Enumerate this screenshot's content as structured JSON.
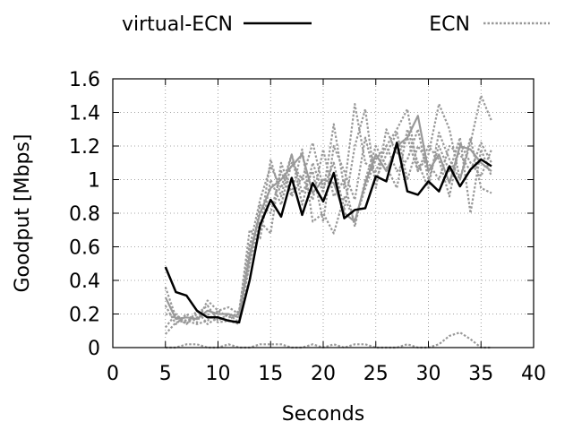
{
  "chart_data": {
    "type": "line",
    "title": "",
    "xlabel": "Seconds",
    "ylabel": "Goodput [Mbps]",
    "xlim": [
      0,
      40
    ],
    "ylim": [
      0,
      1.6
    ],
    "xticks": [
      0,
      5,
      10,
      15,
      20,
      25,
      30,
      35,
      40
    ],
    "xtick_labels": [
      "0",
      "5",
      "10",
      "15",
      "20",
      "25",
      "30",
      "35",
      "40"
    ],
    "yticks": [
      0,
      0.2,
      0.4,
      0.6,
      0.8,
      1.0,
      1.2,
      1.4,
      1.6
    ],
    "ytick_labels": [
      "0",
      "0.2",
      "0.4",
      "0.6",
      "0.8",
      "1",
      "1.2",
      "1.4",
      "1.6"
    ],
    "grid": true,
    "legend_position": "top",
    "legend": [
      {
        "label": "virtual-ECN",
        "color": "#000000",
        "style": "solid"
      },
      {
        "label": "ECN",
        "color": "#999999",
        "style": "dotted"
      }
    ],
    "series": [
      {
        "name": "virtual-ECN",
        "color": "#000000",
        "style": "solid",
        "x": [
          5,
          6,
          7,
          8,
          9,
          10,
          11,
          12,
          13,
          14,
          15,
          16,
          17,
          18,
          19,
          20,
          21,
          22,
          23,
          24,
          25,
          26,
          27,
          28,
          29,
          30,
          31,
          32,
          33,
          34,
          35,
          36
        ],
        "y": [
          0.48,
          0.33,
          0.31,
          0.22,
          0.18,
          0.18,
          0.16,
          0.15,
          0.4,
          0.73,
          0.88,
          0.78,
          1.01,
          0.79,
          0.98,
          0.87,
          1.04,
          0.77,
          0.82,
          0.83,
          1.02,
          0.99,
          1.22,
          0.93,
          0.91,
          0.99,
          0.93,
          1.08,
          0.96,
          1.06,
          1.12,
          1.08
        ]
      },
      {
        "name": "ECN",
        "color": "#999999",
        "style": "dotted",
        "x": [
          5,
          6,
          7,
          8,
          9,
          10,
          11,
          12,
          13,
          14,
          15,
          16,
          17,
          18,
          19,
          20,
          21,
          22,
          23,
          24,
          25,
          26,
          27,
          28,
          29,
          30,
          31,
          32,
          33,
          34,
          35,
          36
        ],
        "y": [
          0.36,
          0.18,
          0.14,
          0.2,
          0.25,
          0.16,
          0.2,
          0.15,
          0.6,
          0.88,
          1.08,
          0.95,
          1.15,
          0.85,
          1.1,
          0.92,
          1.33,
          0.95,
          1.45,
          1.1,
          1.05,
          1.2,
          1.3,
          1.42,
          1.05,
          1.15,
          1.45,
          1.3,
          1.0,
          1.22,
          1.5,
          1.35
        ]
      },
      {
        "name": "ECN",
        "color": "#999999",
        "style": "dotted",
        "x": [
          5,
          6,
          7,
          8,
          9,
          10,
          11,
          12,
          13,
          14,
          15,
          16,
          17,
          18,
          19,
          20,
          21,
          22,
          23,
          24,
          25,
          26,
          27,
          28,
          29,
          30,
          31,
          32,
          33,
          34,
          35,
          36
        ],
        "y": [
          0.08,
          0.15,
          0.16,
          0.18,
          0.2,
          0.15,
          0.16,
          0.14,
          0.5,
          0.75,
          0.68,
          1.1,
          0.92,
          1.18,
          0.75,
          0.8,
          0.68,
          0.9,
          0.75,
          0.95,
          1.12,
          1.2,
          1.05,
          1.12,
          1.3,
          1.0,
          1.2,
          1.05,
          1.25,
          0.8,
          1.18,
          1.02
        ]
      },
      {
        "name": "ECN",
        "color": "#999999",
        "style": "dotted",
        "x": [
          5,
          6,
          7,
          8,
          9,
          10,
          11,
          12,
          13,
          14,
          15,
          16,
          17,
          18,
          19,
          20,
          21,
          22,
          23,
          24,
          25,
          26,
          27,
          28,
          29,
          30,
          31,
          32,
          33,
          34,
          35,
          36
        ],
        "y": [
          0.25,
          0.14,
          0.2,
          0.15,
          0.28,
          0.22,
          0.18,
          0.2,
          0.7,
          0.65,
          1.0,
          0.85,
          1.1,
          1.0,
          1.22,
          0.95,
          1.1,
          0.82,
          1.2,
          1.42,
          0.95,
          1.3,
          1.15,
          1.25,
          1.05,
          1.2,
          1.12,
          0.9,
          1.22,
          1.1,
          1.02,
          1.18
        ]
      },
      {
        "name": "ECN",
        "color": "#999999",
        "style": "dotted",
        "x": [
          5,
          6,
          7,
          8,
          9,
          10,
          11,
          12,
          13,
          14,
          15,
          16,
          17,
          18,
          19,
          20,
          21,
          22,
          23,
          24,
          25,
          26,
          27,
          28,
          29,
          30,
          31,
          32,
          33,
          34,
          35,
          36
        ],
        "y": [
          0.2,
          0.19,
          0.16,
          0.14,
          0.16,
          0.22,
          0.24,
          0.2,
          0.5,
          0.85,
          0.8,
          1.05,
          0.9,
          1.02,
          0.88,
          1.18,
          0.9,
          1.0,
          0.72,
          1.0,
          1.2,
          1.08,
          0.95,
          1.3,
          1.1,
          0.95,
          1.28,
          1.12,
          1.0,
          1.25,
          0.95,
          0.92
        ]
      },
      {
        "name": "ECN",
        "color": "#999999",
        "style": "dotted",
        "x": [
          5,
          6,
          7,
          8,
          9,
          10,
          11,
          12,
          13,
          14,
          15,
          16,
          17,
          18,
          19,
          20,
          21,
          22,
          23,
          24,
          25,
          26,
          27,
          28,
          29,
          30,
          31,
          32,
          33,
          34,
          35,
          36
        ],
        "y": [
          0.12,
          0.2,
          0.14,
          0.22,
          0.14,
          0.18,
          0.16,
          0.22,
          0.62,
          0.7,
          1.12,
          0.9,
          1.15,
          0.92,
          1.05,
          0.75,
          1.2,
          1.05,
          0.88,
          1.25,
          1.0,
          1.15,
          1.28,
          1.0,
          1.2,
          1.1,
          1.0,
          1.2,
          1.15,
          1.05,
          1.22,
          1.1
        ]
      },
      {
        "name": "ECN",
        "color": "#999999",
        "style": "dotted",
        "x": [
          5,
          6,
          7,
          8,
          9,
          10,
          11,
          12,
          13,
          14,
          15,
          16,
          17,
          18,
          19,
          20,
          21,
          22,
          23,
          24,
          25,
          26,
          27,
          28,
          29,
          30,
          31,
          32,
          33,
          34,
          35,
          36
        ],
        "y": [
          0.0,
          0.0,
          0.02,
          0.02,
          0.0,
          0.0,
          0.02,
          0.0,
          0.0,
          0.02,
          0.02,
          0.02,
          0.0,
          0.0,
          0.02,
          0.0,
          0.02,
          0.0,
          0.02,
          0.02,
          0.0,
          0.0,
          0.0,
          0.02,
          0.0,
          0.0,
          0.02,
          0.07,
          0.09,
          0.05,
          0.0,
          0.0
        ]
      },
      {
        "name": "ECN",
        "color": "#999999",
        "style": "solid",
        "x": [
          5,
          6,
          7,
          8,
          9,
          10,
          11,
          12,
          13,
          14,
          15,
          16,
          17,
          18,
          19,
          20,
          21,
          22,
          23,
          24,
          25,
          26,
          27,
          28,
          29,
          30,
          31,
          32,
          33,
          34,
          35,
          36
        ],
        "y": [
          0.3,
          0.17,
          0.18,
          0.17,
          0.22,
          0.2,
          0.2,
          0.18,
          0.55,
          0.8,
          0.95,
          1.0,
          1.08,
          1.15,
          0.92,
          1.0,
          0.98,
          0.8,
          0.75,
          0.98,
          1.15,
          1.05,
          1.2,
          1.25,
          1.38,
          1.05,
          1.15,
          0.98,
          1.2,
          1.18,
          1.1,
          1.05
        ]
      }
    ]
  }
}
